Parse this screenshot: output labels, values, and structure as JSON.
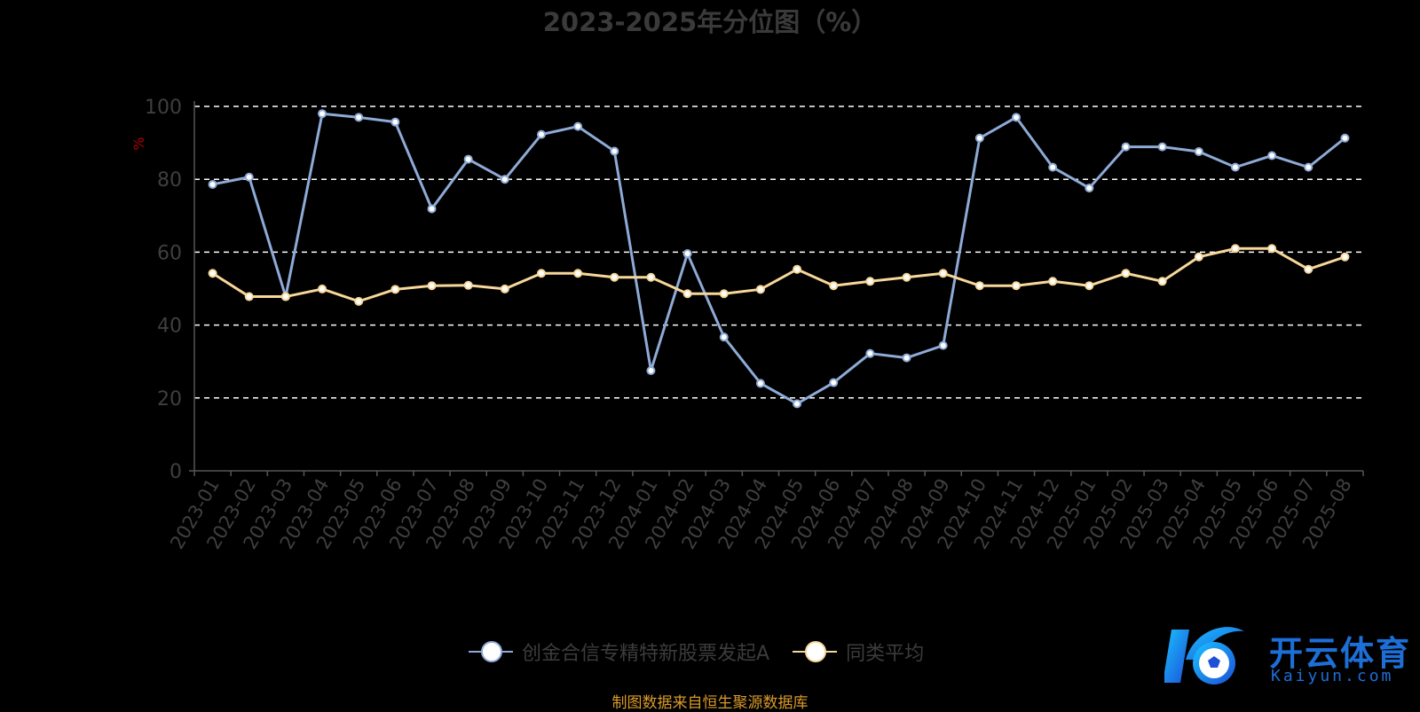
{
  "title": "2023-2025年分位图（%）",
  "footer": "制图数据来自恒生聚源数据库",
  "logo": {
    "cn": "开云体育",
    "en": "Kaiyun.com"
  },
  "colors": {
    "series1": "#8eaad6",
    "series2": "#f7d79a",
    "grid": "#ffffff",
    "axis": "#555555",
    "tick": "#3f3f3f",
    "ylabel": "#b00000"
  },
  "chart_data": {
    "type": "line",
    "title": "2023-2025年分位图（%）",
    "ylabel": "%",
    "xlabel": "",
    "ylim": [
      0,
      100
    ],
    "yticks": [
      0,
      20,
      40,
      60,
      80,
      100
    ],
    "grid": true,
    "legend_position": "bottom",
    "categories": [
      "2023-01",
      "2023-02",
      "2023-03",
      "2023-04",
      "2023-05",
      "2023-06",
      "2023-07",
      "2023-08",
      "2023-09",
      "2023-10",
      "2023-11",
      "2023-12",
      "2024-01",
      "2024-02",
      "2024-03",
      "2024-04",
      "2024-05",
      "2024-06",
      "2024-07",
      "2024-08",
      "2024-09",
      "2024-10",
      "2024-11",
      "2024-12",
      "2025-01",
      "2025-02",
      "2025-03",
      "2025-04",
      "2025-05",
      "2025-06",
      "2025-07",
      "2025-08"
    ],
    "series": [
      {
        "name": "创金合信专精特新股票发起A",
        "values": [
          78.6,
          80.6,
          47.8,
          98.0,
          97.0,
          95.7,
          71.9,
          85.5,
          80.0,
          92.3,
          94.5,
          87.7,
          27.5,
          59.6,
          36.7,
          24.0,
          18.4,
          24.2,
          32.2,
          31.0,
          34.4,
          91.3,
          97.0,
          83.3,
          77.6,
          88.9,
          88.9,
          87.6,
          83.3,
          86.5,
          83.3,
          91.3
        ]
      },
      {
        "name": "同类平均",
        "values": [
          54.2,
          47.8,
          47.8,
          49.9,
          46.5,
          49.8,
          50.8,
          50.9,
          49.9,
          54.2,
          54.2,
          53.1,
          53.1,
          48.6,
          48.6,
          49.8,
          55.3,
          50.8,
          52.0,
          53.1,
          54.2,
          50.8,
          50.8,
          52.0,
          50.8,
          54.2,
          52.0,
          58.7,
          61.0,
          61.0,
          55.3,
          58.7
        ]
      }
    ]
  }
}
